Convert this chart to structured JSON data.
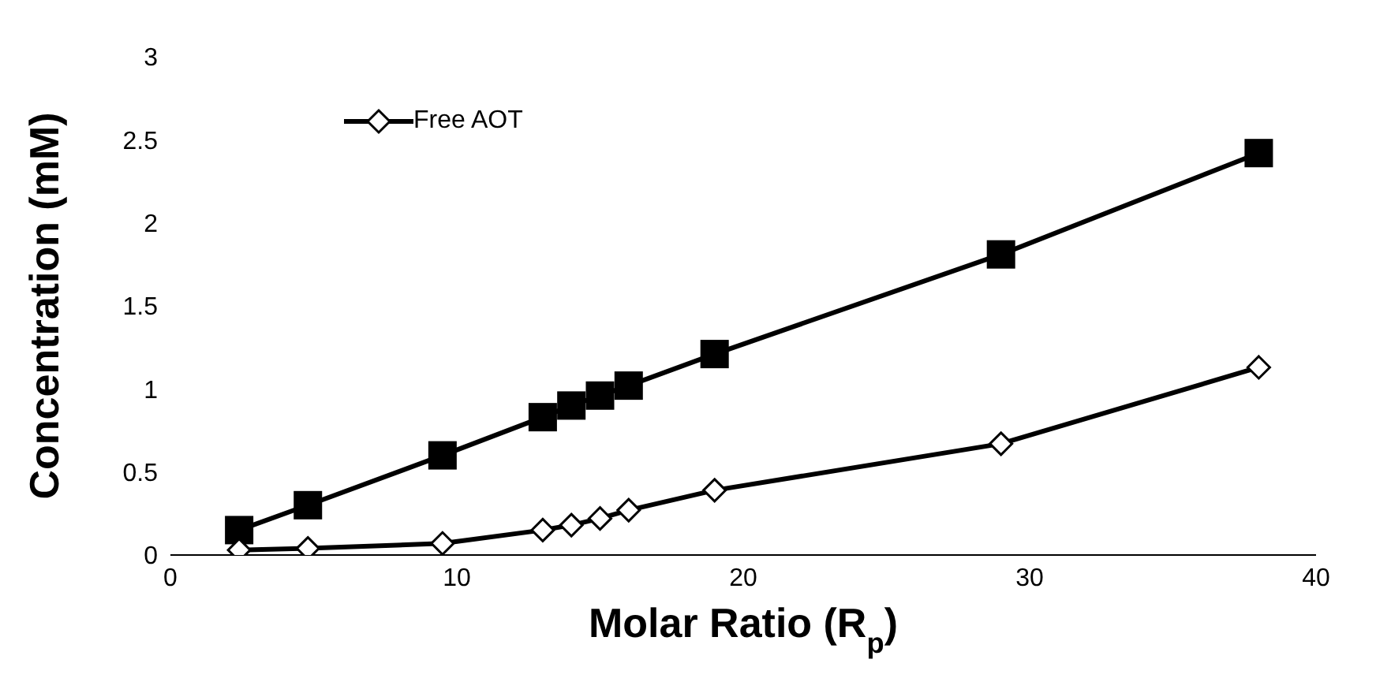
{
  "chart_data": {
    "type": "line",
    "xlabel": "Molar Ratio (R$_{p}$)",
    "ylabel": "Concentration (mM)",
    "x": [
      2.4,
      4.8,
      9.5,
      13,
      14,
      15,
      16,
      19,
      29,
      38
    ],
    "series": [
      {
        "color": "#000000",
        "marker": "square",
        "values": [
          0.15,
          0.3,
          0.6,
          0.83,
          0.9,
          0.96,
          1.02,
          1.21,
          1.81,
          2.42
        ]
      },
      {
        "name": "Free AOT",
        "color": "#000000",
        "marker": "diamond",
        "values": [
          0.03,
          0.04,
          0.07,
          0.15,
          0.18,
          0.22,
          0.27,
          0.39,
          0.67,
          1.13
        ]
      }
    ],
    "xlim": [
      0,
      40
    ],
    "xticks": [
      0,
      10,
      20,
      30,
      40
    ],
    "ylim": [
      0,
      3
    ],
    "yticks": [
      0,
      0.5,
      1,
      1.5,
      2,
      2.5,
      3
    ],
    "grid": false,
    "legend": "top left",
    "line_style": "solid"
  }
}
